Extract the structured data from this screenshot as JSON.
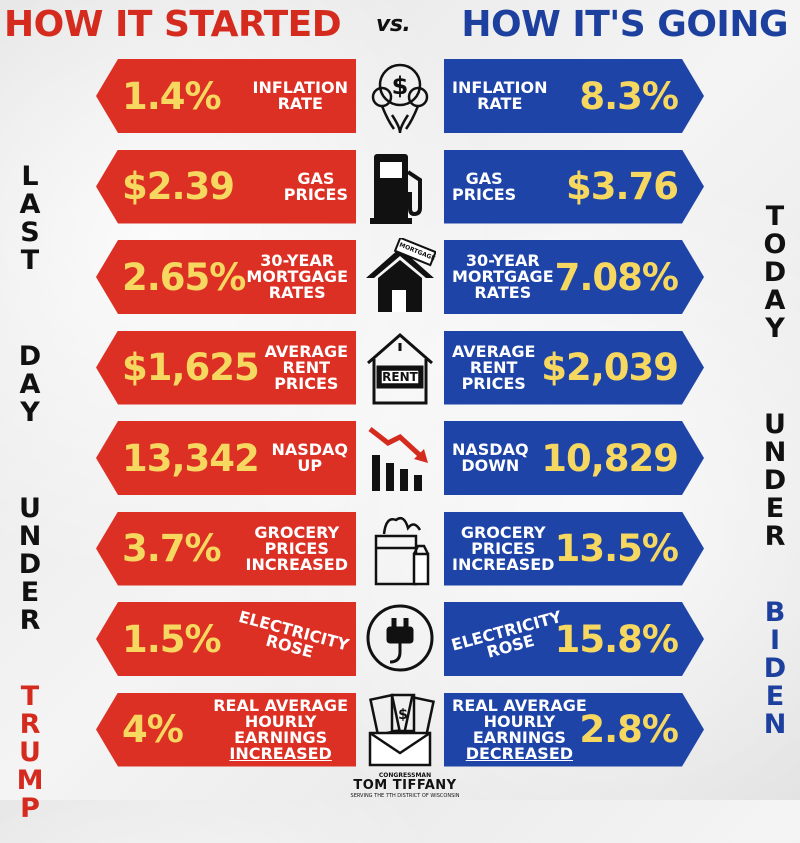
{
  "header": {
    "left": "HOW IT STARTED",
    "vs": "vs.",
    "right": "HOW IT'S GOING"
  },
  "side_left": {
    "words": [
      "LAST",
      "DAY",
      "UNDER"
    ],
    "name": "TRUMP"
  },
  "side_right": {
    "words": [
      "TODAY",
      "UNDER"
    ],
    "name": "BIDEN"
  },
  "colors": {
    "red": "#dc3025",
    "blue": "#1f44a8",
    "yellow": "#f6d860"
  },
  "rows": [
    {
      "icon": "money-balloons-icon",
      "before_value": "1.4%",
      "after_value": "8.3%",
      "label": [
        "INFLATION",
        "RATE"
      ]
    },
    {
      "icon": "gas-pump-icon",
      "before_value": "$2.39",
      "after_value": "$3.76",
      "label": [
        "GAS",
        "PRICES"
      ]
    },
    {
      "icon": "house-mortgage-icon",
      "before_value": "2.65%",
      "after_value": "7.08%",
      "label": [
        "30-YEAR",
        "MORTGAGE",
        "RATES"
      ],
      "icon_text": "MORTGAGE"
    },
    {
      "icon": "rent-sign-house-icon",
      "before_value": "$1,625",
      "after_value": "$2,039",
      "label": [
        "AVERAGE",
        "RENT",
        "PRICES"
      ],
      "icon_text": "RENT"
    },
    {
      "icon": "declining-bar-chart-icon",
      "before_value": "13,342",
      "after_value": "10,829",
      "label_left": [
        "NASDAQ",
        "UP"
      ],
      "label_right": [
        "NASDAQ",
        "DOWN"
      ]
    },
    {
      "icon": "grocery-bag-icon",
      "before_value": "3.7%",
      "after_value": "13.5%",
      "label": [
        "GROCERY",
        "PRICES",
        "INCREASED"
      ]
    },
    {
      "icon": "electric-plug-icon",
      "before_value": "1.5%",
      "after_value": "15.8%",
      "label": [
        "ELECTRICITY",
        "ROSE"
      ]
    },
    {
      "icon": "cash-envelope-icon",
      "before_value": "4%",
      "after_value": "2.8%",
      "label_left": [
        "REAL AVERAGE",
        "HOURLY",
        "EARNINGS",
        "INCREASED"
      ],
      "label_right": [
        "REAL AVERAGE",
        "HOURLY",
        "EARNINGS",
        "DECREASED"
      ]
    }
  ],
  "footer": {
    "top": "CONGRESSMAN",
    "name": "TOM TIFFANY",
    "bottom": "SERVING THE 7TH DISTRICT OF WISCONSIN"
  }
}
